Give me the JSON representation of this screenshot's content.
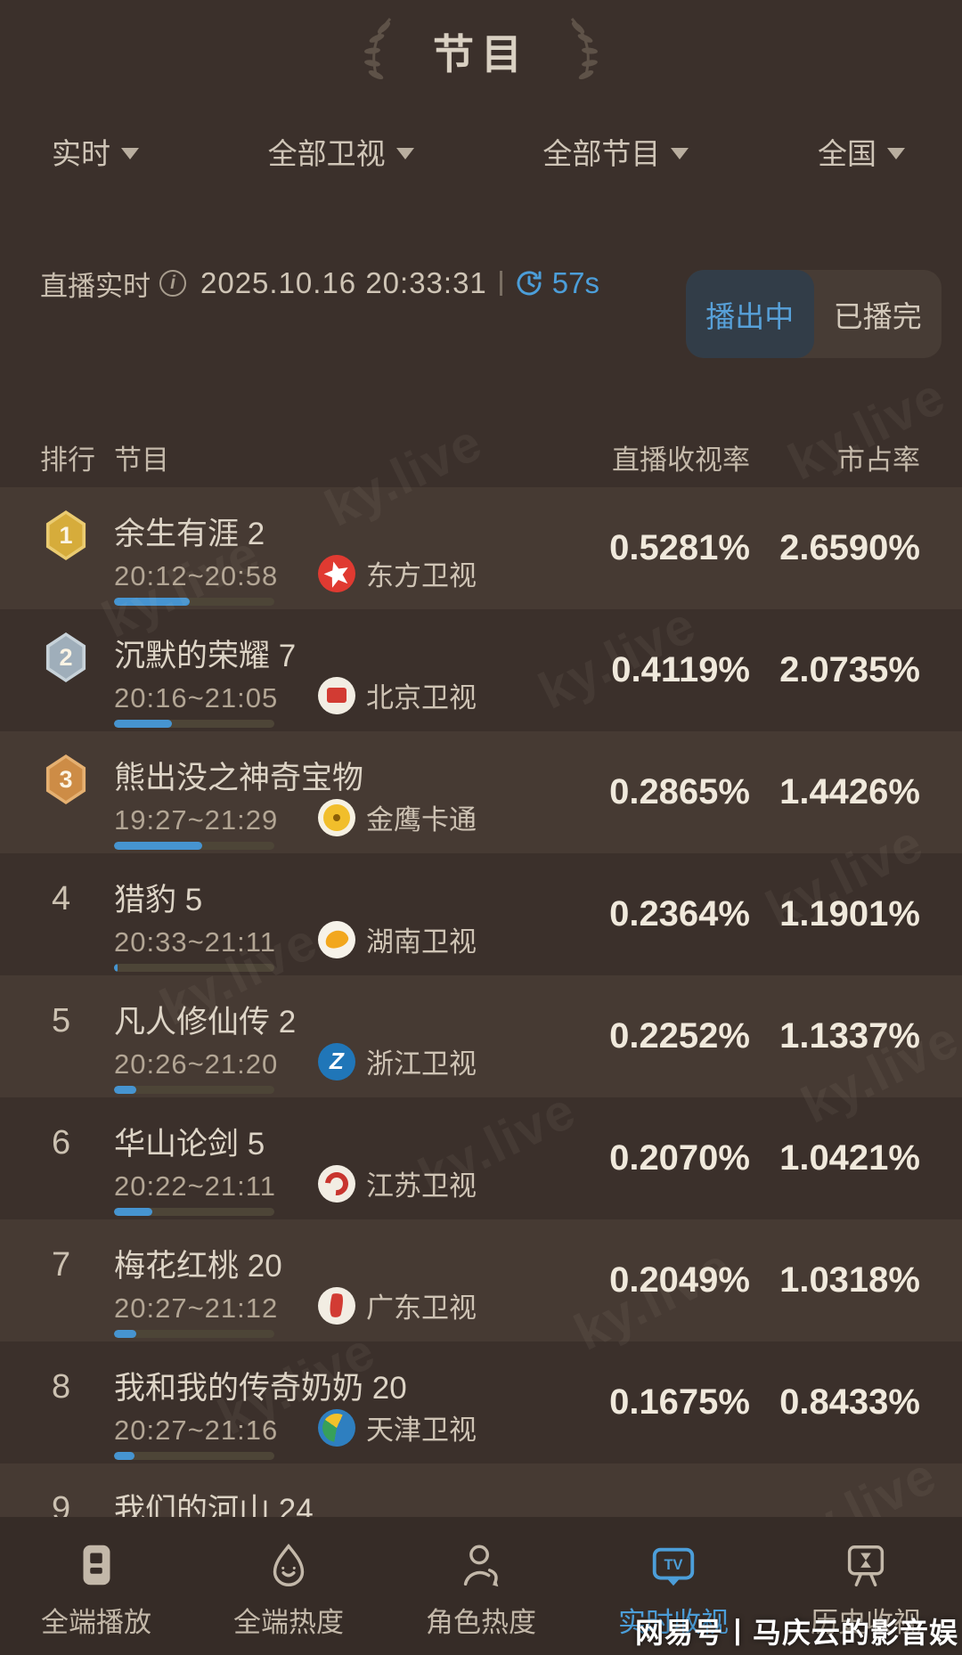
{
  "title": "节目",
  "filters": {
    "time": "实时",
    "channel": "全部卫视",
    "program": "全部节目",
    "region": "全国"
  },
  "live_bar": {
    "label": "直播实时",
    "timestamp": "2025.10.16 20:33:31",
    "refresh": "57s"
  },
  "toggle": {
    "on_air": "播出中",
    "finished": "已播完"
  },
  "columns": {
    "rank": "排行",
    "program": "节目",
    "live_rating": "直播收视率",
    "market_share": "市占率"
  },
  "rows": [
    {
      "rank": "1",
      "badge": "gold",
      "title": "余生有涯 2",
      "time": "20:12~20:58",
      "channel": "东方卫视",
      "logo": "dongfang",
      "rating": "0.5281%",
      "share": "2.6590%",
      "progress": 0.47
    },
    {
      "rank": "2",
      "badge": "silver",
      "title": "沉默的荣耀 7",
      "time": "20:16~21:05",
      "channel": "北京卫视",
      "logo": "beijing",
      "rating": "0.4119%",
      "share": "2.0735%",
      "progress": 0.36
    },
    {
      "rank": "3",
      "badge": "bronze",
      "title": "熊出没之神奇宝物",
      "time": "19:27~21:29",
      "channel": "金鹰卡通",
      "logo": "jinying",
      "rating": "0.2865%",
      "share": "1.4426%",
      "progress": 0.55
    },
    {
      "rank": "4",
      "badge": null,
      "title": "猎豹 5",
      "time": "20:33~21:11",
      "channel": "湖南卫视",
      "logo": "hunan",
      "rating": "0.2364%",
      "share": "1.1901%",
      "progress": 0.02
    },
    {
      "rank": "5",
      "badge": null,
      "title": "凡人修仙传 2",
      "time": "20:26~21:20",
      "channel": "浙江卫视",
      "logo": "zhejiang",
      "rating": "0.2252%",
      "share": "1.1337%",
      "progress": 0.14
    },
    {
      "rank": "6",
      "badge": null,
      "title": "华山论剑 5",
      "time": "20:22~21:11",
      "channel": "江苏卫视",
      "logo": "jiangsu",
      "rating": "0.2070%",
      "share": "1.0421%",
      "progress": 0.24
    },
    {
      "rank": "7",
      "badge": null,
      "title": "梅花红桃 20",
      "time": "20:27~21:12",
      "channel": "广东卫视",
      "logo": "guangdong",
      "rating": "0.2049%",
      "share": "1.0318%",
      "progress": 0.14
    },
    {
      "rank": "8",
      "badge": null,
      "title": "我和我的传奇奶奶 20",
      "time": "20:27~21:16",
      "channel": "天津卫视",
      "logo": "tianjin",
      "rating": "0.1675%",
      "share": "0.8433%",
      "progress": 0.13
    }
  ],
  "partial_row": {
    "rank": "9",
    "title": "我们的河山 24"
  },
  "nav": [
    {
      "label": "全端播放",
      "active": false
    },
    {
      "label": "全端热度",
      "active": false
    },
    {
      "label": "角色热度",
      "active": false
    },
    {
      "label": "实时收视",
      "active": true
    },
    {
      "label": "历史收视",
      "active": false
    }
  ],
  "watermark": {
    "brand": "ky.live",
    "credit": "网易号丨马庆云的影音娱"
  },
  "colors": {
    "background": "#3B302B",
    "row_stripe": "#463A33",
    "accent_blue": "#4C9ED9",
    "badge_gold": "#D6AC3B",
    "badge_silver": "#9FAEBA",
    "badge_bronze": "#CD8C46",
    "rating_text": "#F0E9DC"
  }
}
